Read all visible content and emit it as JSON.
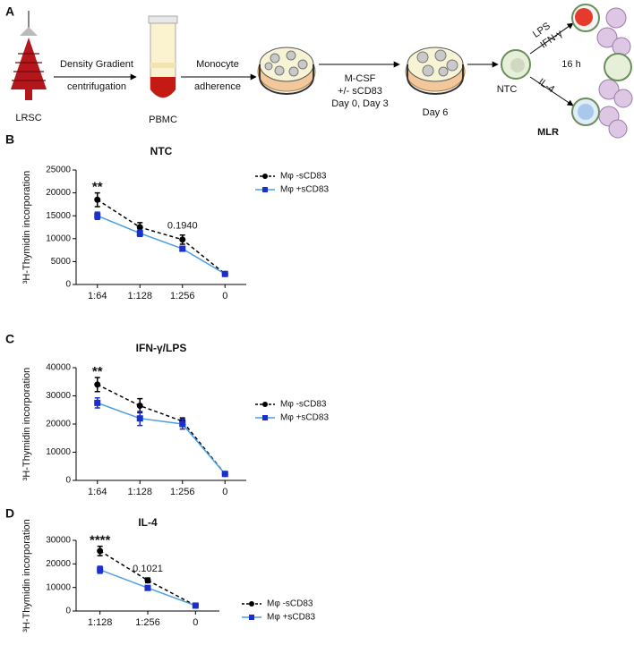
{
  "schematic": {
    "panel": "A",
    "source": "LRSC",
    "step1": [
      "Density Gradient",
      "centrifugation"
    ],
    "pbmc": "PBMC",
    "step2": [
      "Monocyte",
      "adherence"
    ],
    "step3": [
      "M-CSF",
      "+/- sCD83",
      "Day 0, Day 3"
    ],
    "day6": "Day 6",
    "ntc": "NTC",
    "stim_top": [
      "LPS",
      "IFN-γ"
    ],
    "time": "16 h",
    "stim_bottom": "IL-4",
    "mlr": "MLR"
  },
  "chart_data": [
    {
      "type": "line",
      "panel": "B",
      "title": "NTC",
      "title_color": "#000000",
      "y_label": "³H-Thymidin incorporation",
      "categories": [
        "1:64",
        "1:128",
        "1:256",
        "0"
      ],
      "ylim": [
        0,
        25000
      ],
      "yticks": [
        0,
        5000,
        10000,
        15000,
        20000,
        25000
      ],
      "series": [
        {
          "name": "Mφ -sCD83",
          "color": "#000000",
          "line_color": "#000000",
          "marker": "circle",
          "dashed": true,
          "values": [
            18500,
            12500,
            9800,
            2300
          ],
          "errors": [
            1500,
            1000,
            1000,
            200
          ]
        },
        {
          "name": "Mφ +sCD83",
          "color": "#1a2fcc",
          "line_color": "#4a9ee0",
          "marker": "square",
          "dashed": false,
          "values": [
            15000,
            11200,
            7800,
            2300
          ],
          "errors": [
            800,
            700,
            500,
            200
          ]
        }
      ],
      "annotations": [
        {
          "text": "**",
          "x": "1:64"
        },
        {
          "text": "0.1940",
          "x": "1:256"
        }
      ]
    },
    {
      "type": "line",
      "panel": "C",
      "title": "IFN-γ/LPS",
      "title_color": "#e8231f",
      "y_label": "³H-Thymidin incorporation",
      "categories": [
        "1:64",
        "1:128",
        "1:256",
        "0"
      ],
      "ylim": [
        0,
        40000
      ],
      "yticks": [
        0,
        10000,
        20000,
        30000,
        40000
      ],
      "series": [
        {
          "name": "Mφ -sCD83",
          "color": "#000000",
          "line_color": "#000000",
          "marker": "circle",
          "dashed": true,
          "values": [
            34000,
            26500,
            21000,
            2300
          ],
          "errors": [
            2500,
            2500,
            1200,
            200
          ]
        },
        {
          "name": "Mφ +sCD83",
          "color": "#1a2fcc",
          "line_color": "#4a9ee0",
          "marker": "square",
          "dashed": false,
          "values": [
            27500,
            22000,
            20000,
            2300
          ],
          "errors": [
            1800,
            2500,
            1800,
            200
          ]
        }
      ],
      "annotations": [
        {
          "text": "**",
          "x": "1:64"
        }
      ]
    },
    {
      "type": "line",
      "panel": "D",
      "title": "IL-4",
      "title_color": "#2a3fe0",
      "y_label": "³H-Thymidin incorporation",
      "categories": [
        "1:128",
        "1:256",
        "0"
      ],
      "ylim": [
        0,
        30000
      ],
      "yticks": [
        0,
        10000,
        20000,
        30000
      ],
      "series": [
        {
          "name": "Mφ -sCD83",
          "color": "#000000",
          "line_color": "#000000",
          "marker": "circle",
          "dashed": true,
          "values": [
            25500,
            13000,
            2300
          ],
          "errors": [
            2000,
            1000,
            200
          ]
        },
        {
          "name": "Mφ +sCD83",
          "color": "#1a2fcc",
          "line_color": "#4a9ee0",
          "marker": "square",
          "dashed": false,
          "values": [
            17500,
            9800,
            2300
          ],
          "errors": [
            1500,
            500,
            200
          ]
        }
      ],
      "annotations": [
        {
          "text": "****",
          "x": "1:128"
        },
        {
          "text": "0.1021",
          "x": "1:256"
        }
      ]
    }
  ]
}
